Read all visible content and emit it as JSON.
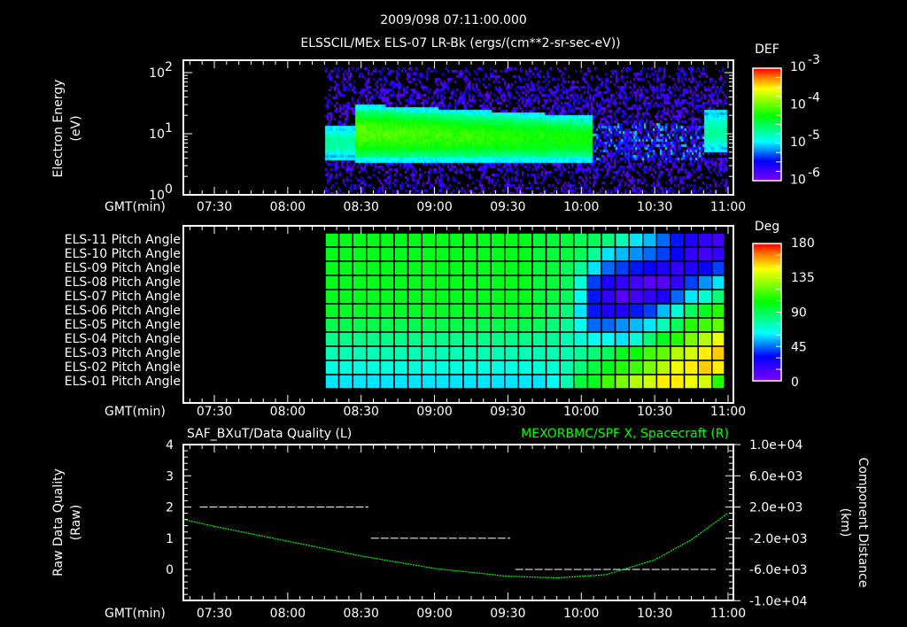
{
  "header": {
    "title": "2009/098 07:11:00.000",
    "subtitle": "ELSSCIL/MEx ELS-07 LR-Bk  (ergs/(cm**2-sr-sec-eV))"
  },
  "time_ticks": [
    "07:30",
    "08:00",
    "08:30",
    "09:00",
    "09:30",
    "10:00",
    "10:30",
    "11:00"
  ],
  "gmt_label": "GMT(min)",
  "chart_data": [
    {
      "type": "heatmap",
      "name": "energy-spectrogram",
      "ylabel": "Electron Energy",
      "yunits": "(eV)",
      "yscale": "log",
      "ylim": [
        1,
        160
      ],
      "yticks": [
        {
          "base": "10",
          "exp": "2"
        },
        {
          "base": "10",
          "exp": "1"
        },
        {
          "base": "10",
          "exp": "0"
        }
      ],
      "xlim": [
        "07:17",
        "11:02"
      ],
      "data_start": "08:10",
      "data_end": "11:00",
      "colorbar": {
        "title": "DEF",
        "range_log10": [
          -6,
          -3
        ],
        "ticks": [
          {
            "base": "10",
            "exp": "-3"
          },
          {
            "base": "10",
            "exp": "-4"
          },
          {
            "base": "10",
            "exp": "-5"
          },
          {
            "base": "10",
            "exp": "-6"
          }
        ]
      }
    },
    {
      "type": "heatmap",
      "name": "pitch-angle",
      "colorbar": {
        "title": "Deg",
        "range": [
          0,
          180
        ],
        "ticks": [
          "180",
          "135",
          "90",
          "45",
          "0"
        ]
      },
      "x_start": "08:10",
      "bin_minutes": 5.65,
      "rows": [
        {
          "label": "ELS-11 Pitch Angle",
          "head": 100,
          "tail": [
            95,
            95,
            95,
            90,
            90,
            85,
            75,
            60,
            55,
            45,
            35,
            25,
            20,
            15
          ]
        },
        {
          "label": "ELS-10 Pitch Angle",
          "head": 100,
          "tail": [
            95,
            95,
            95,
            90,
            80,
            60,
            55,
            50,
            45,
            40,
            30,
            20,
            15,
            20
          ]
        },
        {
          "label": "ELS-09 Pitch Angle",
          "head": 100,
          "tail": [
            95,
            95,
            90,
            80,
            60,
            45,
            40,
            35,
            30,
            25,
            20,
            25,
            30,
            40
          ]
        },
        {
          "label": "ELS-08 Pitch Angle",
          "head": 100,
          "tail": [
            95,
            95,
            90,
            70,
            40,
            25,
            20,
            15,
            10,
            10,
            20,
            40,
            50,
            60
          ]
        },
        {
          "label": "ELS-07 Pitch Angle",
          "head": 100,
          "tail": [
            95,
            95,
            90,
            65,
            35,
            20,
            10,
            15,
            20,
            25,
            45,
            60,
            70,
            85
          ]
        },
        {
          "label": "ELS-06 Pitch Angle",
          "head": 98,
          "tail": [
            95,
            90,
            85,
            60,
            35,
            25,
            25,
            35,
            40,
            55,
            70,
            90,
            100,
            110
          ]
        },
        {
          "label": "ELS-05 Pitch Angle",
          "head": 92,
          "tail": [
            90,
            85,
            80,
            65,
            45,
            45,
            50,
            55,
            60,
            75,
            90,
            110,
            115,
            120
          ]
        },
        {
          "label": "ELS-04 Pitch Angle",
          "head": 82,
          "tail": [
            80,
            80,
            75,
            70,
            65,
            65,
            60,
            70,
            85,
            100,
            110,
            125,
            135,
            145
          ]
        },
        {
          "label": "ELS-03 Pitch Angle",
          "head": 75,
          "tail": [
            75,
            75,
            75,
            80,
            85,
            90,
            100,
            105,
            115,
            120,
            135,
            140,
            150,
            155
          ]
        },
        {
          "label": "ELS-02 Pitch Angle",
          "head": 68,
          "tail": [
            70,
            70,
            75,
            85,
            95,
            100,
            110,
            115,
            125,
            135,
            145,
            150,
            155,
            150
          ]
        },
        {
          "label": "ELS-01 Pitch Angle",
          "head": 60,
          "tail": [
            60,
            65,
            75,
            95,
            100,
            115,
            125,
            135,
            140,
            150,
            150,
            145,
            140,
            110
          ]
        }
      ]
    },
    {
      "type": "line",
      "name": "quality-and-position",
      "left_title": "SAF_BXuT/Data Quality (L)",
      "right_title": "MEXORBMC/SPF X, Spacecraft (R)",
      "right_color": "#00ff00",
      "ylabel_left": "Raw Data Quality",
      "yunits_left": "(Raw)",
      "ylabel_right": "Component Distance",
      "yunits_right": "(km)",
      "ylim_left": [
        -1,
        4
      ],
      "yticks_left": [
        "4",
        "3",
        "2",
        "1",
        "0"
      ],
      "ylim_right": [
        -10000,
        10000
      ],
      "yticks_right": [
        "1.0e+04",
        "6.0e+03",
        "2.0e+03",
        "-2.0e+03",
        "-6.0e+03",
        "-1.0e+04"
      ],
      "quality_segments": [
        {
          "start": "07:24",
          "end": "08:33",
          "value": 2
        },
        {
          "start": "08:34",
          "end": "09:31",
          "value": 1
        },
        {
          "start": "09:33",
          "end": "10:55",
          "value": 0
        }
      ],
      "position_km": {
        "t": [
          "07:17",
          "07:30",
          "08:00",
          "08:30",
          "09:00",
          "09:30",
          "09:50",
          "10:10",
          "10:30",
          "10:45",
          "11:00"
        ],
        "x": [
          400,
          -500,
          -2400,
          -4300,
          -5900,
          -6900,
          -7100,
          -6700,
          -4800,
          -2200,
          1200
        ]
      }
    }
  ]
}
